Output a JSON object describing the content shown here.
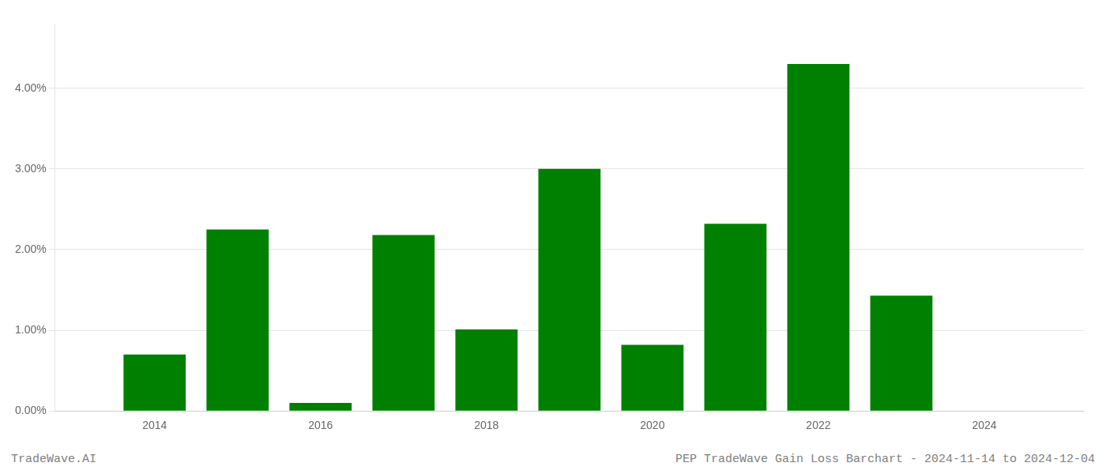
{
  "chart_data": {
    "type": "bar",
    "x": [
      2014,
      2015,
      2016,
      2017,
      2018,
      2019,
      2020,
      2021,
      2022,
      2023
    ],
    "values": [
      0.007,
      0.0225,
      0.001,
      0.0218,
      0.0101,
      0.03,
      0.0082,
      0.0232,
      0.043,
      0.0143
    ],
    "color": "#008000",
    "xlim": [
      2012.8,
      2025.2
    ],
    "xticks": [
      2014,
      2016,
      2018,
      2020,
      2022,
      2024
    ],
    "ylim": [
      0,
      0.048
    ],
    "yticks": [
      {
        "value": 0.0,
        "label": "0.00%"
      },
      {
        "value": 0.01,
        "label": "1.00%"
      },
      {
        "value": 0.02,
        "label": "2.00%"
      },
      {
        "value": 0.03,
        "label": "3.00%"
      },
      {
        "value": 0.04,
        "label": "4.00%"
      }
    ],
    "grid": "y",
    "annotations": [
      "TradeWave.AI",
      "PEP TradeWave Gain Loss Barchart - 2024-11-14 to 2024-12-04"
    ]
  }
}
